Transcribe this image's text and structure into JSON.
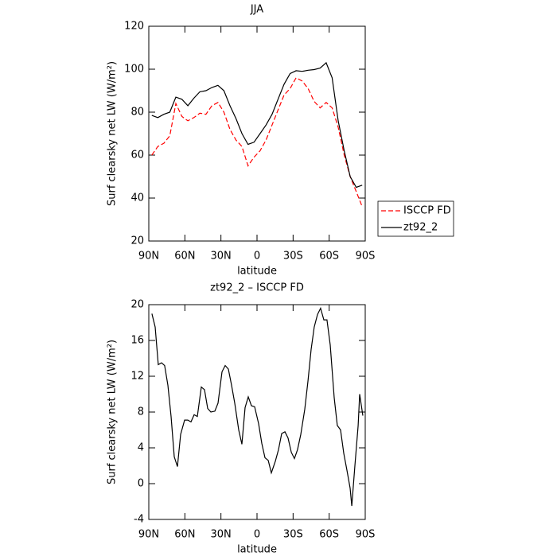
{
  "chart_data": [
    {
      "type": "line",
      "title": "JJA",
      "xlabel": "latitude",
      "ylabel": "Surf clearsky net LW (W/m²)",
      "xlim": [
        90,
        -90
      ],
      "xticks": [
        {
          "value": 90,
          "label": "90N"
        },
        {
          "value": 60,
          "label": "60N"
        },
        {
          "value": 30,
          "label": "30N"
        },
        0,
        {
          "value": -30,
          "label": "30S"
        },
        {
          "value": -60,
          "label": "60S"
        },
        {
          "value": -90,
          "label": "90S"
        }
      ],
      "ylim": [
        20,
        120
      ],
      "yticks": [
        20,
        40,
        60,
        80,
        100,
        120
      ],
      "legend": "right",
      "x": [
        87.5,
        82.5,
        77.5,
        72.5,
        67.5,
        62.5,
        57.5,
        52.5,
        47.5,
        42.5,
        37.5,
        32.5,
        27.5,
        22.5,
        17.5,
        12.5,
        7.5,
        2.5,
        -2.5,
        -7.5,
        -12.5,
        -17.5,
        -22.5,
        -27.5,
        -32.5,
        -37.5,
        -42.5,
        -47.5,
        -52.5,
        -57.5,
        -62.5,
        -67.5,
        -72.5,
        -77.5,
        -82.5,
        -87.5
      ],
      "series": [
        {
          "name": "ISCCP FD",
          "color": "#ff0000",
          "linestyle": "dashed",
          "values": [
            60,
            64,
            65.5,
            69,
            84,
            78,
            76,
            77.5,
            79.5,
            79,
            83,
            84.5,
            80,
            72,
            67,
            64,
            55,
            59,
            62,
            67,
            74,
            81,
            88,
            91,
            96,
            94.5,
            91,
            85,
            82,
            84.5,
            82,
            73,
            60,
            50,
            43,
            36
          ]
        },
        {
          "name": "zt92_2",
          "color": "#000000",
          "linestyle": "solid",
          "values": [
            78.5,
            77.5,
            79,
            80,
            87,
            86,
            83,
            86.5,
            89.5,
            90,
            91.5,
            92.5,
            90,
            83,
            77,
            70,
            65,
            66,
            70,
            74,
            79,
            86,
            93,
            98,
            99.3,
            99,
            99.5,
            99.8,
            100.5,
            103,
            96,
            76,
            62,
            50,
            45,
            46
          ]
        }
      ]
    },
    {
      "type": "line",
      "title": "zt92_2 – ISCCP FD",
      "xlabel": "latitude",
      "ylabel": "Surf clearsky net LW (W/m²)",
      "xlim": [
        90,
        -90
      ],
      "xticks": [
        {
          "value": 90,
          "label": "90N"
        },
        {
          "value": 60,
          "label": "60N"
        },
        {
          "value": 30,
          "label": "30N"
        },
        0,
        {
          "value": -30,
          "label": "30S"
        },
        {
          "value": -60,
          "label": "60S"
        },
        {
          "value": -90,
          "label": "90S"
        }
      ],
      "ylim": [
        -4,
        20
      ],
      "yticks": [
        -4,
        0,
        4,
        8,
        12,
        16,
        20
      ],
      "x": [
        87.4,
        84.7,
        82.1,
        79.4,
        76.8,
        74.1,
        71.5,
        68.8,
        66.2,
        63.5,
        60.2,
        57.6,
        54.9,
        52.3,
        49.6,
        46.3,
        43.7,
        41.0,
        38.4,
        35.1,
        32.4,
        29.1,
        26.5,
        23.8,
        21.2,
        18.5,
        15.2,
        12.6,
        9.9,
        7.3,
        4.6,
        2.0,
        -1.3,
        -4.0,
        -6.6,
        -9.3,
        -11.9,
        -15.2,
        -17.9,
        -20.5,
        -23.2,
        -25.8,
        -28.5,
        -31.1,
        -33.7,
        -36.4,
        -39.7,
        -42.4,
        -45.0,
        -47.6,
        -50.3,
        -52.9,
        -55.6,
        -58.2,
        -60.9,
        -64.2,
        -66.8,
        -69.5,
        -72.1,
        -74.8,
        -77.4,
        -78.8,
        -81.4,
        -84.1,
        -85.4,
        -88.0
      ],
      "series": [
        {
          "color": "#000000",
          "linestyle": "solid",
          "values": [
            19,
            17.5,
            13.3,
            13.5,
            13.2,
            11,
            7.5,
            3,
            1.9,
            5.5,
            7.1,
            7.1,
            6.9,
            7.7,
            7.5,
            10.8,
            10.5,
            8.4,
            8.0,
            8.1,
            9,
            12.5,
            13.2,
            12.8,
            11,
            9,
            6,
            4.4,
            8.5,
            9.7,
            8.7,
            8.6,
            6.7,
            4.5,
            2.9,
            2.6,
            1.2,
            2.5,
            3.8,
            5.6,
            5.8,
            5.1,
            3.5,
            2.8,
            3.8,
            5.5,
            8.3,
            11.5,
            15,
            17.5,
            18.9,
            19.6,
            18.3,
            18.3,
            15.5,
            9.6,
            6.5,
            6,
            3.4,
            1.5,
            -0.5,
            -2.5,
            2,
            6.5,
            10,
            7.6
          ]
        }
      ]
    }
  ]
}
